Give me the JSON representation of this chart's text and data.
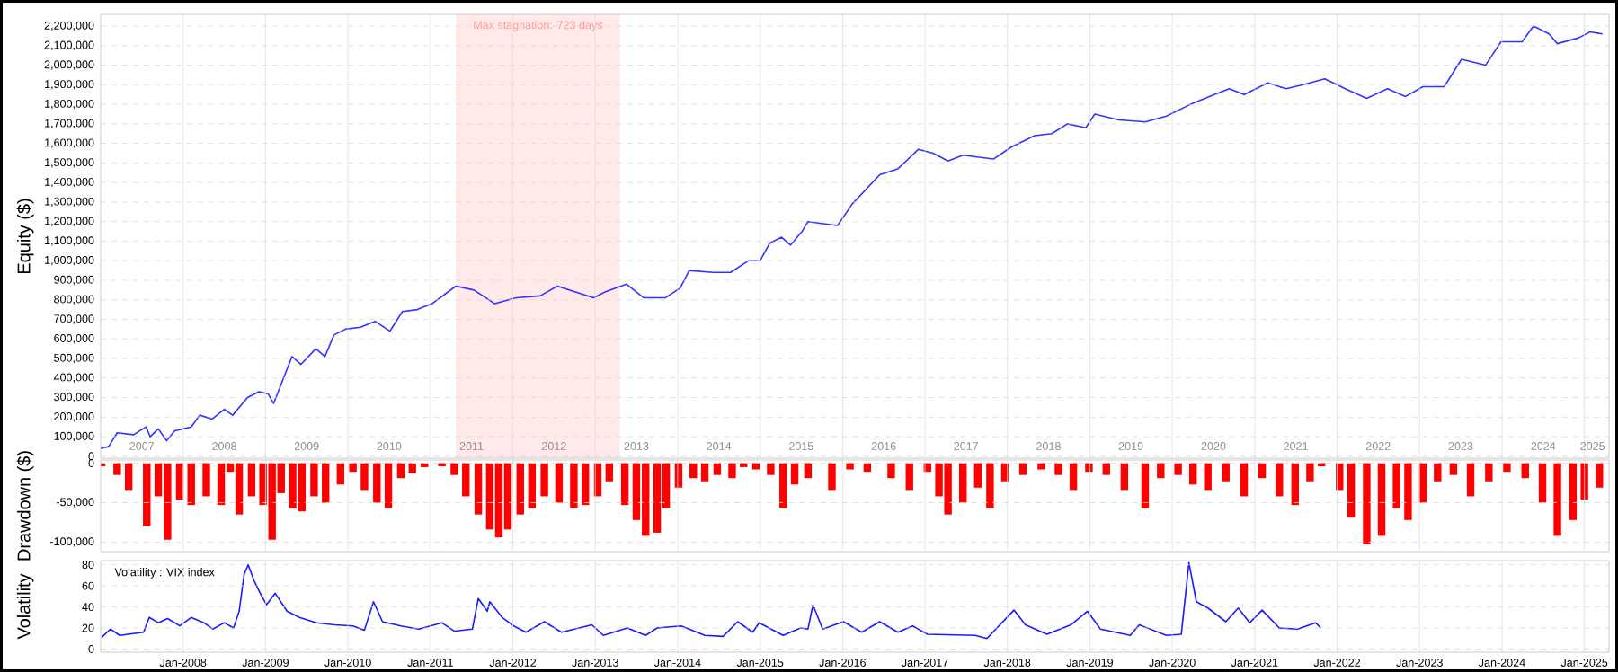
{
  "chart_data": [
    {
      "type": "line",
      "ylabel": "Equity ($)",
      "color": "#3333ff",
      "grid": true,
      "x": [
        "2007-01-01",
        "2007-02-06",
        "2007-03-15",
        "2007-05-27",
        "2007-07-21",
        "2007-08-08",
        "2007-09-13",
        "2007-10-20",
        "2007-11-25",
        "2008-01-01",
        "2008-02-06",
        "2008-03-15",
        "2008-05-09",
        "2008-07-02",
        "2008-08-08",
        "2008-10-13",
        "2008-12-03",
        "2009-01-12",
        "2009-02-06",
        "2009-04-28",
        "2009-06-07",
        "2009-08-12",
        "2009-09-21",
        "2009-10-31",
        "2009-12-21",
        "2010-02-25",
        "2010-05-01",
        "2010-07-06",
        "2010-08-30",
        "2010-11-04",
        "2011-01-08",
        "2011-04-24",
        "2011-07-13",
        "2011-10-13",
        "2012-01-16",
        "2012-05-01",
        "2012-07-17",
        "2012-10-05",
        "2012-12-25",
        "2013-02-13",
        "2013-05-20",
        "2013-08-04",
        "2013-11-07",
        "2014-01-12",
        "2014-02-21",
        "2014-06-07",
        "2014-08-23",
        "2014-11-11",
        "2015-01-01",
        "2015-02-13",
        "2015-04-06",
        "2015-05-16",
        "2015-07-06",
        "2015-08-01",
        "2015-12-10",
        "2016-02-13",
        "2016-06-14",
        "2016-09-03",
        "2016-12-03",
        "2017-02-06",
        "2017-04-13",
        "2017-06-18",
        "2017-10-31",
        "2018-01-16",
        "2018-05-01",
        "2018-07-17",
        "2018-09-24",
        "2018-12-14",
        "2019-01-23",
        "2019-05-09",
        "2019-09-03",
        "2019-12-06",
        "2020-03-22",
        "2020-07-06",
        "2020-09-10",
        "2020-11-15",
        "2021-02-28",
        "2021-05-20",
        "2021-08-04",
        "2021-11-07",
        "2022-02-06",
        "2022-05-12",
        "2022-08-12",
        "2022-10-31",
        "2023-01-16",
        "2023-04-20",
        "2023-07-06",
        "2023-10-20",
        "2023-12-28",
        "2024-03-30",
        "2024-05-20",
        "2024-07-28",
        "2024-09-03",
        "2024-12-06",
        "2025-01-27",
        "2025-03-22"
      ],
      "values": [
        40000,
        50000,
        120000,
        110000,
        150000,
        100000,
        140000,
        80000,
        130000,
        140000,
        150000,
        210000,
        190000,
        240000,
        210000,
        300000,
        330000,
        320000,
        270000,
        510000,
        470000,
        550000,
        510000,
        620000,
        650000,
        660000,
        690000,
        640000,
        740000,
        750000,
        780000,
        870000,
        850000,
        780000,
        810000,
        820000,
        870000,
        840000,
        810000,
        840000,
        880000,
        810000,
        810000,
        860000,
        950000,
        940000,
        940000,
        1000000,
        1000000,
        1090000,
        1120000,
        1080000,
        1150000,
        1200000,
        1180000,
        1290000,
        1440000,
        1470000,
        1570000,
        1550000,
        1510000,
        1540000,
        1520000,
        1580000,
        1640000,
        1650000,
        1700000,
        1680000,
        1750000,
        1720000,
        1710000,
        1740000,
        1800000,
        1850000,
        1880000,
        1850000,
        1910000,
        1880000,
        1900000,
        1930000,
        1880000,
        1830000,
        1880000,
        1840000,
        1890000,
        1890000,
        2030000,
        2000000,
        2120000,
        2120000,
        2200000,
        2160000,
        2110000,
        2140000,
        2170000,
        2160000
      ],
      "xlim": [
        "2007-01-01",
        "2025-04-20"
      ],
      "ylim": [
        -10000,
        2260000
      ],
      "xticks": [
        {
          "value": "2008-01-01",
          "label": null
        },
        {
          "value": "2009-01-01",
          "label": null
        },
        {
          "value": "2010-01-01",
          "label": null
        },
        {
          "value": "2011-01-01",
          "label": null
        },
        {
          "value": "2012-01-01",
          "label": null
        },
        {
          "value": "2013-01-01",
          "label": null
        },
        {
          "value": "2014-01-01",
          "label": null
        },
        {
          "value": "2015-01-01",
          "label": null
        },
        {
          "value": "2016-01-01",
          "label": null
        },
        {
          "value": "2017-01-01",
          "label": null
        },
        {
          "value": "2018-01-01",
          "label": null
        },
        {
          "value": "2019-01-01",
          "label": null
        },
        {
          "value": "2020-01-01",
          "label": null
        },
        {
          "value": "2021-01-01",
          "label": null
        },
        {
          "value": "2022-01-01",
          "label": null
        },
        {
          "value": "2023-01-01",
          "label": null
        },
        {
          "value": "2024-01-01",
          "label": null
        },
        {
          "value": "2025-01-01",
          "label": null
        },
        {
          "value": "2007-07-02",
          "label": "2007"
        },
        {
          "value": "2008-07-02",
          "label": "2008"
        },
        {
          "value": "2009-07-02",
          "label": "2009"
        },
        {
          "value": "2010-07-02",
          "label": "2010"
        },
        {
          "value": "2011-07-02",
          "label": "2011"
        },
        {
          "value": "2012-07-02",
          "label": "2012"
        },
        {
          "value": "2013-07-02",
          "label": "2013"
        },
        {
          "value": "2014-07-02",
          "label": "2014"
        },
        {
          "value": "2015-07-02",
          "label": "2015"
        },
        {
          "value": "2016-07-02",
          "label": "2016"
        },
        {
          "value": "2017-07-02",
          "label": "2017"
        },
        {
          "value": "2018-07-02",
          "label": "2018"
        },
        {
          "value": "2019-07-02",
          "label": "2019"
        },
        {
          "value": "2020-07-02",
          "label": "2020"
        },
        {
          "value": "2021-07-02",
          "label": "2021"
        },
        {
          "value": "2022-07-02",
          "label": "2022"
        },
        {
          "value": "2023-07-02",
          "label": "2023"
        },
        {
          "value": "2024-07-02",
          "label": "2024"
        },
        {
          "value": "2025-02-06",
          "label": "2025"
        }
      ],
      "yticks": [
        0,
        {
          "value": 100000,
          "label": "100,000"
        },
        {
          "value": 200000,
          "label": "200,000"
        },
        {
          "value": 300000,
          "label": "300,000"
        },
        {
          "value": 400000,
          "label": "400,000"
        },
        {
          "value": 500000,
          "label": "500,000"
        },
        {
          "value": 600000,
          "label": "600,000"
        },
        {
          "value": 700000,
          "label": "700,000"
        },
        {
          "value": 800000,
          "label": "800,000"
        },
        {
          "value": 900000,
          "label": "900,000"
        },
        {
          "value": 1000000,
          "label": "1,000,000"
        },
        {
          "value": 1100000,
          "label": "1,100,000"
        },
        {
          "value": 1200000,
          "label": "1,200,000"
        },
        {
          "value": 1300000,
          "label": "1,300,000"
        },
        {
          "value": 1400000,
          "label": "1,400,000"
        },
        {
          "value": 1500000,
          "label": "1,500,000"
        },
        {
          "value": 1600000,
          "label": "1,600,000"
        },
        {
          "value": 1700000,
          "label": "1,700,000"
        },
        {
          "value": 1800000,
          "label": "1,800,000"
        },
        {
          "value": 1900000,
          "label": "1,900,000"
        },
        {
          "value": 2000000,
          "label": "2,000,000"
        },
        {
          "value": 2100000,
          "label": "2,100,000"
        },
        {
          "value": 2200000,
          "label": "2,200,000"
        }
      ],
      "bands": [
        {
          "axis": "x",
          "from": "2011-04-24",
          "to": "2013-04-20",
          "label": "Max stagnation: 723 days",
          "color": "#ffe9e9"
        }
      ]
    },
    {
      "type": "bar",
      "ylabel": "Drawdown ($)",
      "color": "#ff0000",
      "grid": true,
      "tick_labels": "y",
      "x": [
        "2007-01-05",
        "2007-03-15",
        "2007-05-05",
        "2007-07-24",
        "2007-09-13",
        "2007-10-24",
        "2007-12-17",
        "2008-02-06",
        "2008-04-13",
        "2008-06-18",
        "2008-07-28",
        "2008-09-06",
        "2008-10-31",
        "2008-12-21",
        "2009-01-30",
        "2009-03-11",
        "2009-05-01",
        "2009-06-11",
        "2009-08-04",
        "2009-09-24",
        "2009-11-29",
        "2010-01-23",
        "2010-03-15",
        "2010-05-09",
        "2010-06-29",
        "2010-08-23",
        "2010-10-13",
        "2010-12-06",
        "2011-02-21",
        "2011-04-17",
        "2011-06-07",
        "2011-08-01",
        "2011-09-21",
        "2011-10-31",
        "2011-12-10",
        "2012-02-03",
        "2012-03-26",
        "2012-05-20",
        "2012-07-24",
        "2012-09-28",
        "2012-11-18",
        "2013-01-12",
        "2013-03-04",
        "2013-05-12",
        "2013-07-02",
        "2013-08-12",
        "2013-10-02",
        "2013-11-11",
        "2014-01-05",
        "2014-03-11",
        "2014-05-01",
        "2014-06-25",
        "2014-08-30",
        "2014-10-20",
        "2014-12-14",
        "2015-02-17",
        "2015-04-13",
        "2015-06-03",
        "2015-08-01",
        "2015-11-15",
        "2016-02-03",
        "2016-04-20",
        "2016-08-04",
        "2016-10-24",
        "2017-01-12",
        "2017-03-04",
        "2017-04-13",
        "2017-06-18",
        "2017-08-23",
        "2017-10-16",
        "2017-12-21",
        "2018-03-11",
        "2018-05-31",
        "2018-08-15",
        "2018-10-20",
        "2018-12-28",
        "2019-03-15",
        "2019-06-03",
        "2019-09-03",
        "2019-11-11",
        "2020-01-27",
        "2020-04-02",
        "2020-06-07",
        "2020-08-26",
        "2020-11-15",
        "2021-02-03",
        "2021-04-20",
        "2021-06-29",
        "2021-09-03",
        "2021-10-24",
        "2022-01-12",
        "2022-03-04",
        "2022-05-12",
        "2022-07-17",
        "2022-09-21",
        "2022-11-11",
        "2023-01-16",
        "2023-03-22",
        "2023-05-31",
        "2023-08-15",
        "2023-11-04",
        "2024-01-23",
        "2024-04-13",
        "2024-06-29",
        "2024-09-03",
        "2024-11-11",
        "2025-01-01",
        "2025-03-08"
      ],
      "values": [
        -4000,
        -15000,
        -34000,
        -80000,
        -42000,
        -97000,
        -46000,
        -53000,
        -42000,
        -53000,
        -11000,
        -65000,
        -42000,
        -53000,
        -97000,
        -38000,
        -57000,
        -61000,
        -42000,
        -50000,
        -27000,
        -11000,
        -34000,
        -50000,
        -57000,
        -19000,
        -13000,
        -5000,
        -4000,
        -15000,
        -42000,
        -65000,
        -84000,
        -94000,
        -84000,
        -65000,
        -57000,
        -42000,
        -50000,
        -57000,
        -53000,
        -42000,
        -23000,
        -53000,
        -72000,
        -92000,
        -88000,
        -57000,
        -31000,
        -19000,
        -23000,
        -15000,
        -19000,
        -5000,
        -8000,
        -15000,
        -57000,
        -27000,
        -19000,
        -34000,
        -8000,
        -11000,
        -19000,
        -34000,
        -11000,
        -42000,
        -65000,
        -50000,
        -31000,
        -57000,
        -23000,
        -15000,
        -8000,
        -15000,
        -34000,
        -11000,
        -15000,
        -34000,
        -57000,
        -19000,
        -15000,
        -27000,
        -34000,
        -23000,
        -42000,
        -19000,
        -42000,
        -53000,
        -23000,
        -4000,
        -34000,
        -69000,
        -103000,
        -92000,
        -57000,
        -72000,
        -50000,
        -23000,
        -15000,
        -42000,
        -23000,
        -11000,
        -19000,
        -50000,
        -92000,
        -72000,
        -46000,
        -31000
      ],
      "xlim": [
        "2007-01-01",
        "2025-04-20"
      ],
      "ylim": [
        -112000,
        4000
      ],
      "xticks": [
        {
          "value": "2008-01-01",
          "label": null
        },
        {
          "value": "2009-01-01",
          "label": null
        },
        {
          "value": "2010-01-01",
          "label": null
        },
        {
          "value": "2011-01-01",
          "label": null
        },
        {
          "value": "2012-01-01",
          "label": null
        },
        {
          "value": "2013-01-01",
          "label": null
        },
        {
          "value": "2014-01-01",
          "label": null
        },
        {
          "value": "2015-01-01",
          "label": null
        },
        {
          "value": "2016-01-01",
          "label": null
        },
        {
          "value": "2017-01-01",
          "label": null
        },
        {
          "value": "2018-01-01",
          "label": null
        },
        {
          "value": "2019-01-01",
          "label": null
        },
        {
          "value": "2020-01-01",
          "label": null
        },
        {
          "value": "2021-01-01",
          "label": null
        },
        {
          "value": "2022-01-01",
          "label": null
        },
        {
          "value": "2023-01-01",
          "label": null
        },
        {
          "value": "2024-01-01",
          "label": null
        },
        {
          "value": "2025-01-01",
          "label": null
        }
      ],
      "yticks": [
        {
          "value": -100000,
          "label": "-100,000"
        },
        {
          "value": -50000,
          "label": "-50,000"
        },
        0
      ]
    },
    {
      "type": "line",
      "ylabel": "Volatility",
      "color": "#1a1aff",
      "grid": true,
      "annotations": [
        "Volatility : VIX index"
      ],
      "x": [
        "2007-01-05",
        "2007-02-13",
        "2007-03-26",
        "2007-07-10",
        "2007-08-04",
        "2007-09-13",
        "2007-10-24",
        "2007-12-17",
        "2008-02-06",
        "2008-04-02",
        "2008-05-12",
        "2008-07-02",
        "2008-08-12",
        "2008-09-06",
        "2008-09-28",
        "2008-10-16",
        "2008-11-11",
        "2008-12-06",
        "2009-01-05",
        "2009-02-13",
        "2009-04-06",
        "2009-05-31",
        "2009-08-15",
        "2009-11-04",
        "2010-01-23",
        "2010-03-15",
        "2010-04-24",
        "2010-06-03",
        "2010-08-23",
        "2010-11-11",
        "2011-02-21",
        "2011-04-17",
        "2011-07-06",
        "2011-08-01",
        "2011-09-10",
        "2011-09-21",
        "2011-11-15",
        "2012-01-05",
        "2012-02-28",
        "2012-05-20",
        "2012-08-04",
        "2012-12-17",
        "2013-02-06",
        "2013-05-23",
        "2013-08-12",
        "2013-10-02",
        "2014-01-16",
        "2014-05-01",
        "2014-07-21",
        "2014-09-24",
        "2014-11-29",
        "2014-12-28",
        "2015-04-13",
        "2015-06-29",
        "2015-08-01",
        "2015-08-23",
        "2015-10-05",
        "2016-01-05",
        "2016-03-26",
        "2016-06-14",
        "2016-09-03",
        "2016-11-07",
        "2017-01-12",
        "2017-08-12",
        "2017-10-02",
        "2018-01-30",
        "2018-03-22",
        "2018-06-25",
        "2018-10-09",
        "2018-12-21",
        "2019-02-17",
        "2019-06-29",
        "2019-08-08",
        "2019-12-06",
        "2020-02-10",
        "2020-03-15",
        "2020-04-17",
        "2020-06-07",
        "2020-08-26",
        "2020-10-20",
        "2020-12-10",
        "2021-02-03",
        "2021-04-20",
        "2021-07-10",
        "2021-09-28",
        "2021-10-20"
      ],
      "values": [
        11,
        19,
        13,
        16,
        30,
        25,
        29,
        22,
        30,
        25,
        19,
        25,
        20,
        36,
        71,
        80,
        65,
        54,
        42,
        53,
        36,
        30,
        25,
        23,
        22,
        18,
        45,
        26,
        22,
        19,
        25,
        17,
        19,
        48,
        36,
        45,
        30,
        22,
        16,
        26,
        16,
        23,
        13,
        20,
        13,
        20,
        22,
        13,
        12,
        26,
        16,
        25,
        13,
        20,
        19,
        42,
        19,
        26,
        16,
        26,
        16,
        22,
        14,
        13,
        10,
        37,
        23,
        14,
        23,
        36,
        19,
        13,
        23,
        13,
        14,
        82,
        45,
        39,
        26,
        39,
        25,
        37,
        20,
        19,
        25,
        20
      ],
      "xlim": [
        "2007-01-01",
        "2025-04-20"
      ],
      "ylim": [
        -3,
        84
      ],
      "xticks": [
        {
          "value": "2008-01-01",
          "label": "Jan-2008"
        },
        {
          "value": "2009-01-01",
          "label": "Jan-2009"
        },
        {
          "value": "2010-01-01",
          "label": "Jan-2010"
        },
        {
          "value": "2011-01-01",
          "label": "Jan-2011"
        },
        {
          "value": "2012-01-01",
          "label": "Jan-2012"
        },
        {
          "value": "2013-01-01",
          "label": "Jan-2013"
        },
        {
          "value": "2014-01-01",
          "label": "Jan-2014"
        },
        {
          "value": "2015-01-01",
          "label": "Jan-2015"
        },
        {
          "value": "2016-01-01",
          "label": "Jan-2016"
        },
        {
          "value": "2017-01-01",
          "label": "Jan-2017"
        },
        {
          "value": "2018-01-01",
          "label": "Jan-2018"
        },
        {
          "value": "2019-01-01",
          "label": "Jan-2019"
        },
        {
          "value": "2020-01-01",
          "label": "Jan-2020"
        },
        {
          "value": "2021-01-01",
          "label": "Jan-2021"
        },
        {
          "value": "2022-01-01",
          "label": "Jan-2022"
        },
        {
          "value": "2023-01-01",
          "label": "Jan-2023"
        },
        {
          "value": "2024-01-01",
          "label": "Jan-2024"
        },
        {
          "value": "2025-01-01",
          "label": "Jan-2025"
        }
      ],
      "yticks": [
        0,
        20,
        40,
        60,
        80
      ]
    }
  ]
}
